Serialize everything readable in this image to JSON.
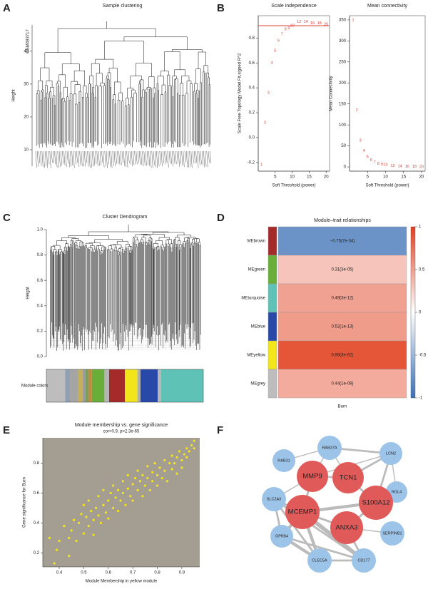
{
  "panel_labels": [
    "A",
    "B",
    "C",
    "D",
    "E",
    "F"
  ],
  "chart_data": [
    {
      "type": "dendrogram",
      "title": "Sample clustering",
      "y_label": "Height",
      "ylim": [
        5,
        48
      ],
      "yticks": [
        10,
        20,
        30,
        40
      ],
      "annotation": "GSM493717"
    },
    {
      "type": "scatter",
      "marker": "text",
      "title": "Scale independence",
      "x_label": "Soft Threshold (power)",
      "y_label": "Scale Free Topology Model Fit,signed R^2",
      "x": [
        1,
        2,
        3,
        4,
        5,
        6,
        7,
        8,
        9,
        10,
        12,
        14,
        16,
        18,
        20
      ],
      "values": [
        -0.22,
        0.12,
        0.36,
        0.6,
        0.7,
        0.78,
        0.83,
        0.87,
        0.88,
        0.9,
        0.93,
        0.93,
        0.92,
        0.92,
        0.91
      ],
      "color": "#e0403a",
      "hline": 0.9,
      "xlim": [
        0,
        21
      ],
      "xticks": [
        5,
        10,
        15,
        20
      ],
      "ylim": [
        -0.27,
        0.98
      ],
      "yticks": [
        -0.2,
        {
          "value": 0,
          "label": "0.0"
        },
        0.2,
        0.4,
        0.6,
        0.8
      ]
    },
    {
      "type": "scatter",
      "marker": "text",
      "title": "Mean connectivity",
      "x_label": "Soft Threshold (power)",
      "y_label": "Mean Connectivity",
      "x": [
        1,
        2,
        3,
        4,
        5,
        6,
        7,
        8,
        9,
        10,
        12,
        14,
        16,
        18,
        20
      ],
      "values": [
        350,
        135,
        63,
        38,
        24,
        16,
        11,
        8,
        6,
        5,
        3,
        2,
        1,
        1,
        0.5
      ],
      "color": "#e0403a",
      "xlim": [
        0,
        21
      ],
      "xticks": [
        5,
        10,
        15,
        20
      ],
      "ylim": [
        -10,
        360
      ],
      "yticks": [
        0,
        50,
        100,
        150,
        200,
        250,
        300,
        350
      ]
    },
    {
      "type": "dendrogram",
      "title": "Cluster Dendrogram",
      "y_label": "Height",
      "ylim": [
        0,
        1
      ],
      "yticks": [
        {
          "value": 0,
          "label": "0.0"
        },
        0.2,
        0.4,
        0.6,
        0.8,
        {
          "value": 1,
          "label": "1.0"
        }
      ],
      "color_bar_label": "Module colors",
      "module_colors": [
        {
          "color": "#bdbdbd",
          "size": 0.12
        },
        {
          "color": "#8fa0b5",
          "size": 0.03
        },
        {
          "color": "#a5a5a5",
          "size": 0.05
        },
        {
          "color": "#c4b05a",
          "size": 0.03
        },
        {
          "color": "#9c9c9c",
          "size": 0.02
        },
        {
          "color": "#7e9c5b",
          "size": 0.02
        },
        {
          "color": "#c08a3a",
          "size": 0.02
        },
        {
          "color": "#6aae3a",
          "size": 0.08
        },
        {
          "color": "#b5b5b5",
          "size": 0.03
        },
        {
          "color": "#a52a2a",
          "size": 0.1
        },
        {
          "color": "#f2e61b",
          "size": 0.08
        },
        {
          "color": "#b0b0b0",
          "size": 0.02
        },
        {
          "color": "#2849a8",
          "size": 0.11
        },
        {
          "color": "#b8b8b8",
          "size": 0.02
        },
        {
          "color": "#5ec2b6",
          "size": 0.27
        }
      ]
    },
    {
      "type": "heatmap",
      "title": "Module–trait relationships",
      "categories": [
        "MEbrown",
        "MEgreen",
        "MEturquoise",
        "MEblue",
        "MEyellow",
        "MEgrey"
      ],
      "row_colors": [
        "#a52a2a",
        "#6aae3a",
        "#5ec2b6",
        "#2849a8",
        "#f2e61b",
        "#bdbdbd"
      ],
      "x_label": "Burn",
      "values": [
        -0.75,
        0.31,
        0.49,
        0.52,
        0.89,
        0.44
      ],
      "value_labels": [
        "−0.75(7e-34)",
        "0.31(3e-05)",
        "0.49(3e-12)",
        "0.52(1e-13)",
        "0.89(3e-62)",
        "0.44(1e-09)"
      ],
      "zlim": [
        -1,
        1
      ],
      "colors": [
        "#3a6fb5",
        "#ffffff",
        "#e2401f"
      ],
      "colorbar_ticks": [
        -1,
        -0.5,
        0,
        0.5,
        1
      ]
    },
    {
      "type": "scatter",
      "marker": "dot",
      "title": "Module membership vs. gene significance",
      "subtitle": "cor=0.9, p=2.3e-65",
      "x_label": "Module Membership in yellow module",
      "y_label": "Gene significance for Burn",
      "color": "#f5e61a",
      "background": "#a39d92",
      "x": [
        0.38,
        0.39,
        0.4,
        0.42,
        0.44,
        0.45,
        0.46,
        0.47,
        0.48,
        0.49,
        0.5,
        0.5,
        0.51,
        0.52,
        0.52,
        0.53,
        0.54,
        0.54,
        0.55,
        0.56,
        0.56,
        0.57,
        0.58,
        0.58,
        0.59,
        0.6,
        0.6,
        0.61,
        0.62,
        0.62,
        0.63,
        0.64,
        0.64,
        0.65,
        0.66,
        0.66,
        0.67,
        0.68,
        0.68,
        0.69,
        0.7,
        0.7,
        0.71,
        0.72,
        0.72,
        0.73,
        0.74,
        0.74,
        0.75,
        0.76,
        0.76,
        0.77,
        0.78,
        0.78,
        0.79,
        0.8,
        0.8,
        0.81,
        0.82,
        0.83,
        0.83,
        0.84,
        0.85,
        0.86,
        0.86,
        0.87,
        0.88,
        0.88,
        0.89,
        0.9,
        0.9,
        0.91,
        0.92,
        0.92,
        0.93,
        0.94,
        0.95,
        0.95,
        0.44,
        0.36
      ],
      "values": [
        0.13,
        0.22,
        0.28,
        0.38,
        0.3,
        0.35,
        0.42,
        0.28,
        0.4,
        0.46,
        0.33,
        0.52,
        0.44,
        0.38,
        0.55,
        0.48,
        0.32,
        0.42,
        0.5,
        0.45,
        0.58,
        0.4,
        0.52,
        0.62,
        0.47,
        0.55,
        0.43,
        0.6,
        0.5,
        0.65,
        0.57,
        0.48,
        0.62,
        0.55,
        0.68,
        0.6,
        0.52,
        0.63,
        0.72,
        0.58,
        0.66,
        0.55,
        0.7,
        0.62,
        0.75,
        0.68,
        0.58,
        0.72,
        0.65,
        0.78,
        0.7,
        0.62,
        0.74,
        0.68,
        0.8,
        0.72,
        0.65,
        0.77,
        0.7,
        0.82,
        0.75,
        0.68,
        0.8,
        0.76,
        0.85,
        0.8,
        0.73,
        0.84,
        0.88,
        0.82,
        0.77,
        0.86,
        0.9,
        0.84,
        0.88,
        0.92,
        0.9,
        0.95,
        0.18,
        0.3
      ],
      "xlim": [
        0.333,
        0.973
      ],
      "xticks": [
        0.4,
        0.5,
        0.6,
        0.7,
        0.8,
        0.9
      ],
      "ylim": [
        0.106,
        0.97
      ],
      "yticks": [
        0.2,
        0.4,
        0.6,
        0.8
      ]
    },
    {
      "type": "network",
      "nodes": [
        {
          "label": "RAB27A",
          "color": "#9cc3e8"
        },
        {
          "label": "LCN2",
          "color": "#9cc3e8"
        },
        {
          "label": "RAB31",
          "color": "#9cc3e8"
        },
        {
          "label": "TCN1",
          "color": "#e05a5a"
        },
        {
          "label": "MMP9",
          "color": "#e05a5a"
        },
        {
          "label": "RGL4",
          "color": "#9cc3e8"
        },
        {
          "label": "S100A12",
          "color": "#e05a5a"
        },
        {
          "label": "SLC2A3",
          "color": "#9cc3e8"
        },
        {
          "label": "MCEMP1",
          "color": "#e05a5a"
        },
        {
          "label": "ANXA3",
          "color": "#e05a5a"
        },
        {
          "label": "SERPINB1",
          "color": "#9cc3e8"
        },
        {
          "label": "GPR84",
          "color": "#9cc3e8"
        },
        {
          "label": "CLEC5A",
          "color": "#9cc3e8"
        },
        {
          "label": "CD177",
          "color": "#9cc3e8"
        }
      ],
      "edge_color": "#bbbbbb",
      "edges": [
        {
          "source": 0,
          "target": 1,
          "weight": 2
        },
        {
          "source": 0,
          "target": 2,
          "weight": 1
        },
        {
          "source": 0,
          "target": 3,
          "weight": 1
        },
        {
          "source": 0,
          "target": 4,
          "weight": 1
        },
        {
          "source": 1,
          "target": 3,
          "weight": 2
        },
        {
          "source": 1,
          "target": 5,
          "weight": 1
        },
        {
          "source": 1,
          "target": 6,
          "weight": 2
        },
        {
          "source": 1,
          "target": 4,
          "weight": 1
        },
        {
          "source": 3,
          "target": 4,
          "weight": 2
        },
        {
          "source": 4,
          "target": 8,
          "weight": 2
        },
        {
          "source": 3,
          "target": 6,
          "weight": 2
        },
        {
          "source": 6,
          "target": 8,
          "weight": 3
        },
        {
          "source": 6,
          "target": 9,
          "weight": 2
        },
        {
          "source": 7,
          "target": 8,
          "weight": 2
        },
        {
          "source": 7,
          "target": 11,
          "weight": 2
        },
        {
          "source": 8,
          "target": 11,
          "weight": 3
        },
        {
          "source": 8,
          "target": 12,
          "weight": 3
        },
        {
          "source": 8,
          "target": 13,
          "weight": 4
        },
        {
          "source": 8,
          "target": 9,
          "weight": 2
        },
        {
          "source": 11,
          "target": 12,
          "weight": 3
        },
        {
          "source": 11,
          "target": 13,
          "weight": 2
        },
        {
          "source": 12,
          "target": 13,
          "weight": 2
        },
        {
          "source": 9,
          "target": 10,
          "weight": 1
        },
        {
          "source": 9,
          "target": 13,
          "weight": 2
        },
        {
          "source": 7,
          "target": 12,
          "weight": 2
        },
        {
          "source": 7,
          "target": 13,
          "weight": 2
        },
        {
          "source": 7,
          "target": 4,
          "weight": 1
        }
      ]
    }
  ]
}
